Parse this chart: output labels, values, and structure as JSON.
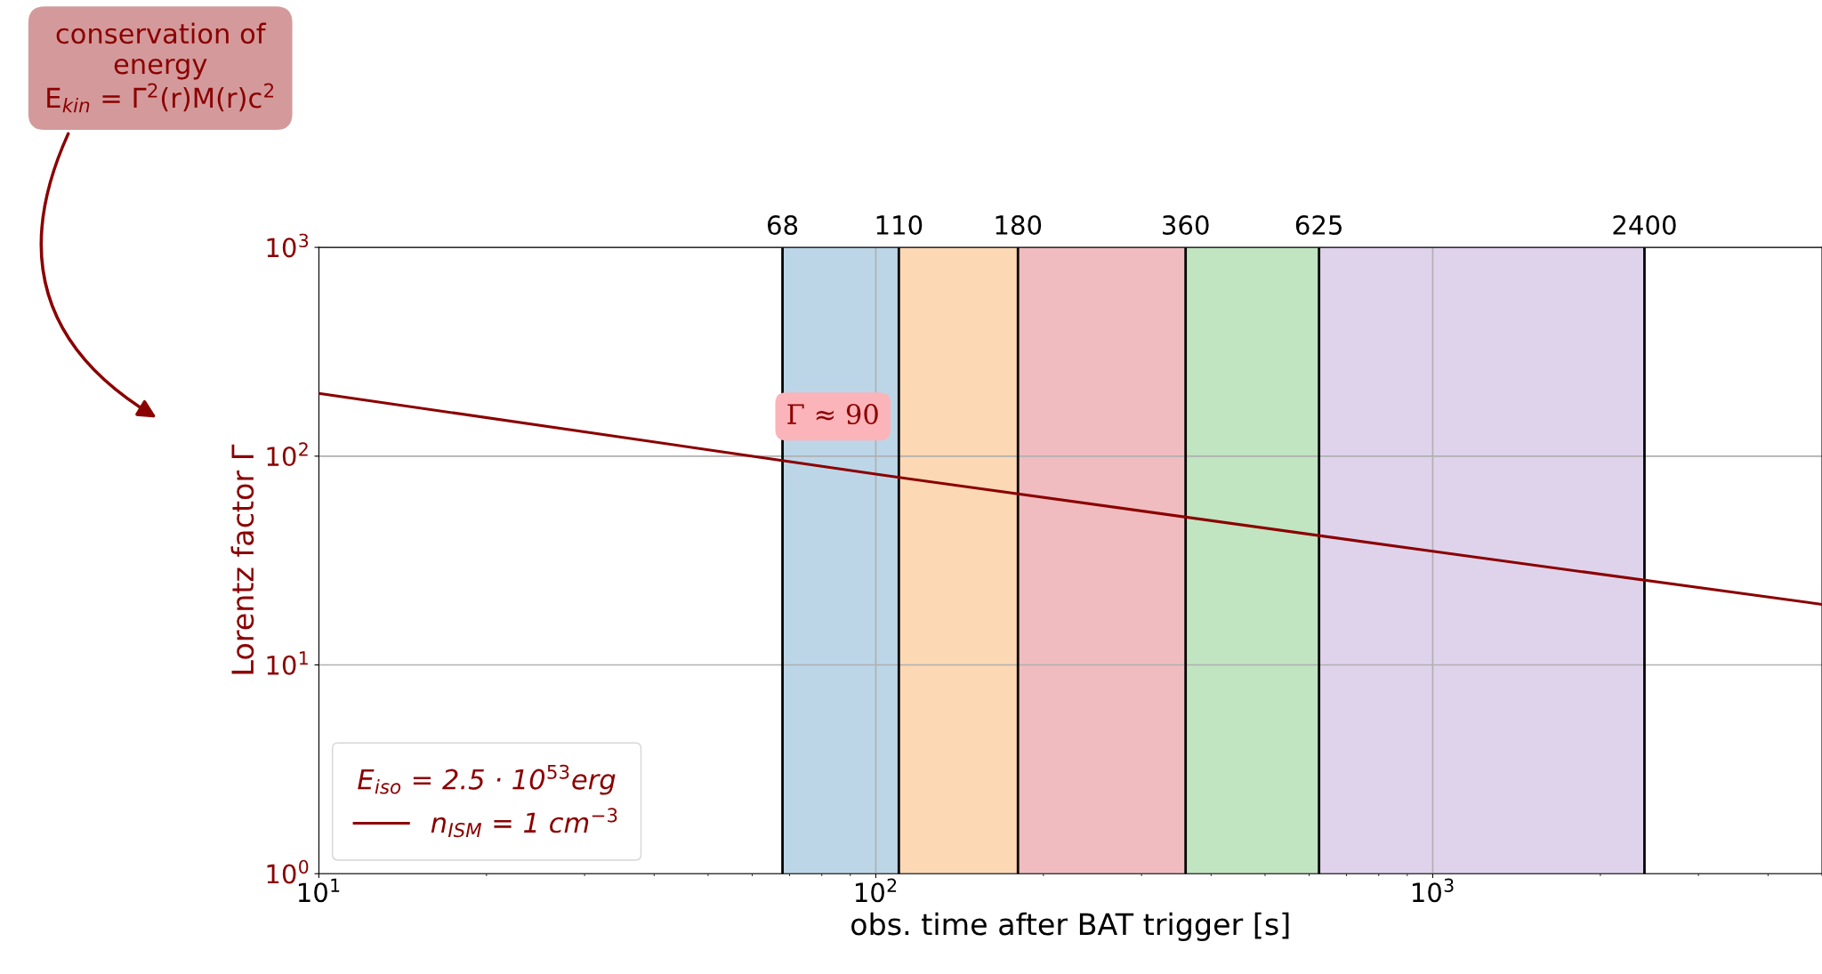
{
  "chart_data": {
    "type": "line",
    "xlabel": "obs. time after BAT trigger [s]",
    "ylabel": "Lorentz factor Γ",
    "legend_title": "E$_{iso}$ = 2.5 · 10$^{53}$erg",
    "series": [
      {
        "name": "n$_{ISM}$ = 1 cm$^{−3}$",
        "color": "#8b0000",
        "x": [
          10,
          100,
          1000,
          5000
        ],
        "values": [
          200,
          82,
          35,
          19.5
        ]
      }
    ],
    "log": "xy",
    "xlim": [
      10,
      5000
    ],
    "xticks": [
      {
        "value": 10,
        "label": "10$^{1}$"
      },
      {
        "value": 100,
        "label": "10$^{2}$"
      },
      {
        "value": 1000,
        "label": "10$^{3}$"
      }
    ],
    "ylim": [
      1,
      1000
    ],
    "yticks": [
      {
        "value": 1,
        "label": "10$^{0}$"
      },
      {
        "value": 10,
        "label": "10$^{1}$"
      },
      {
        "value": 100,
        "label": "10$^{2}$"
      },
      {
        "value": 1000,
        "label": "10$^{3}$"
      }
    ],
    "grid": true,
    "legend": "bottom left",
    "line_style": "solid",
    "marker": "none",
    "bands": [
      {
        "axis": "x",
        "from": 68,
        "to": 110,
        "color": "#bcd6e8"
      },
      {
        "axis": "x",
        "from": 110,
        "to": 180,
        "color": "#fdd8b5"
      },
      {
        "axis": "x",
        "from": 180,
        "to": 360,
        "color": "#f0bcbf"
      },
      {
        "axis": "x",
        "from": 360,
        "to": 625,
        "color": "#c1e4c1"
      },
      {
        "axis": "x",
        "from": 625,
        "to": 2400,
        "color": "#dfd3ec"
      }
    ],
    "ref_lines": [
      {
        "axis": "x",
        "value": 68,
        "label": "68",
        "color": "#000000",
        "line_style": "solid"
      },
      {
        "axis": "x",
        "value": 110,
        "label": "110",
        "color": "#000000",
        "line_style": "solid"
      },
      {
        "axis": "x",
        "value": 180,
        "label": "180",
        "color": "#000000",
        "line_style": "solid"
      },
      {
        "axis": "x",
        "value": 360,
        "label": "360",
        "color": "#000000",
        "line_style": "solid"
      },
      {
        "axis": "x",
        "value": 625,
        "label": "625",
        "color": "#000000",
        "line_style": "solid"
      },
      {
        "axis": "x",
        "value": 2400,
        "label": "2400",
        "color": "#000000",
        "line_style": "solid"
      }
    ],
    "annotations": [
      "Γ ≈ 90",
      "conservation of\nenergy\nE$_{kin}$ = Γ$^{2}$(r)M(r)c$^{2}$"
    ]
  }
}
